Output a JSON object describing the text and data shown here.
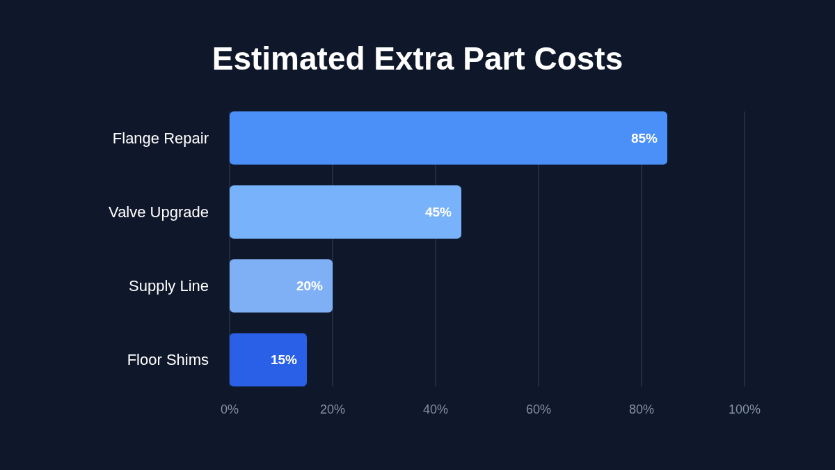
{
  "chart_data": {
    "type": "bar",
    "orientation": "horizontal",
    "title": "Estimated Extra Part Costs",
    "categories": [
      "Flange Repair",
      "Valve Upgrade",
      "Supply Line",
      "Floor Shims"
    ],
    "values": [
      85,
      45,
      20,
      15
    ],
    "colors": [
      "#4a90f8",
      "#78b2fb",
      "#7fb0f5",
      "#2a60e8"
    ],
    "xlim": [
      0,
      100
    ],
    "xticks": [
      {
        "value": 0,
        "label": "0%"
      },
      {
        "value": 20,
        "label": "20%"
      },
      {
        "value": 40,
        "label": "40%"
      },
      {
        "value": 60,
        "label": "60%"
      },
      {
        "value": 80,
        "label": "80%"
      },
      {
        "value": 100,
        "label": "100%"
      }
    ],
    "grid": "x",
    "value_labels": [
      "85%",
      "45%",
      "20%",
      "15%"
    ]
  }
}
